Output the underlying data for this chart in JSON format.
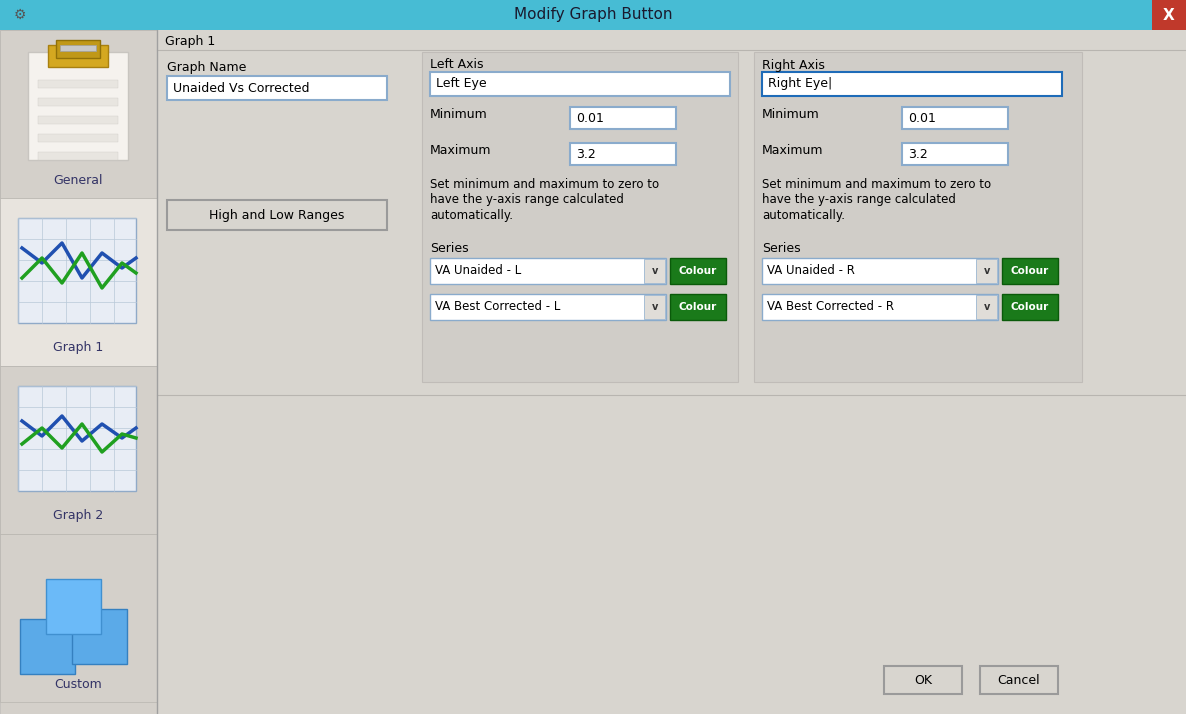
{
  "title": "Modify Graph Button",
  "title_bar_color": "#47bcd4",
  "close_btn_color": "#c0392b",
  "dialog_bg": "#dcdcdc",
  "sidebar_bg": "#d4d0ca",
  "sidebar_selected_bg": "#e8e4de",
  "content_bg": "#d8d5cf",
  "white": "#ffffff",
  "graph1_label": "Graph 1",
  "graph_name_label": "Graph Name",
  "graph_name_value": "Unaided Vs Corrected",
  "left_axis_label": "Left Axis",
  "left_axis_value": "Left Eye",
  "right_axis_label": "Right Axis",
  "right_axis_value": "Right Eye|",
  "min_label": "Minimum",
  "max_label": "Maximum",
  "min_value": "0.01",
  "max_value": "3.2",
  "hint_line1": "Set minimum and maximum to zero to",
  "hint_line2": "have the y-axis range calculated",
  "hint_line3": "automatically.",
  "series_label": "Series",
  "left_series1": "VA Unaided - L",
  "left_series2": "VA Best Corrected - L",
  "right_series1": "VA Unaided - R",
  "right_series2": "VA Best Corrected - R",
  "colour_btn_color": "#1a7a1a",
  "colour_btn_text": "Colour",
  "high_low_btn_text": "High and Low Ranges",
  "ok_text": "OK",
  "cancel_text": "Cancel",
  "input_bg": "#ffffff",
  "input_border": "#8aabcc",
  "selected_input_border": "#1e6bb8",
  "btn_bg": "#d8d5cf",
  "btn_border": "#9a9a9a",
  "separator_color": "#b8b5b0",
  "panel_border": "#c0bcb8",
  "sidebar_items": [
    "General",
    "Graph 1",
    "Graph 2",
    "Custom"
  ],
  "sidebar_label_color": "#333366"
}
